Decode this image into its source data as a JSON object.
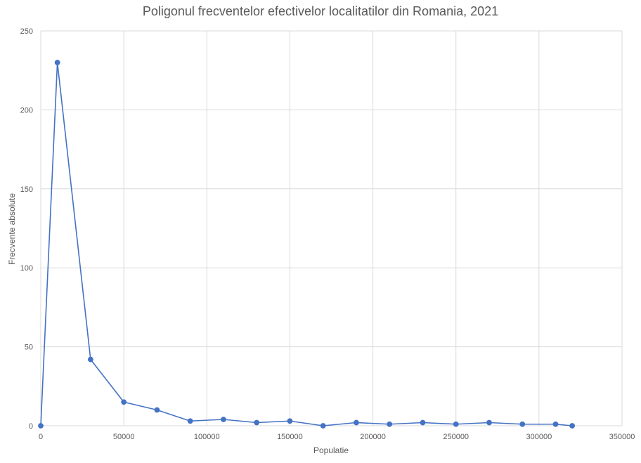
{
  "chart_data": {
    "type": "line",
    "title": "Poligonul frecventelor efectivelor localitatilor din Romania, 2021",
    "xlabel": "Populatie",
    "ylabel": "Frecvente absolute",
    "xlim": [
      0,
      350000
    ],
    "ylim": [
      0,
      250
    ],
    "x_ticks": [
      0,
      50000,
      100000,
      150000,
      200000,
      250000,
      300000,
      350000
    ],
    "y_ticks": [
      0,
      50,
      100,
      150,
      200,
      250
    ],
    "grid": true,
    "legend": "none",
    "series": [
      {
        "color": "#4472C4",
        "points": [
          {
            "x": 0,
            "y": 0
          },
          {
            "x": 10000,
            "y": 230
          },
          {
            "x": 30000,
            "y": 42
          },
          {
            "x": 50000,
            "y": 15
          },
          {
            "x": 70000,
            "y": 10
          },
          {
            "x": 90000,
            "y": 3
          },
          {
            "x": 110000,
            "y": 4
          },
          {
            "x": 130000,
            "y": 2
          },
          {
            "x": 150000,
            "y": 3
          },
          {
            "x": 170000,
            "y": 0
          },
          {
            "x": 190000,
            "y": 2
          },
          {
            "x": 210000,
            "y": 1
          },
          {
            "x": 230000,
            "y": 2
          },
          {
            "x": 250000,
            "y": 1
          },
          {
            "x": 270000,
            "y": 2
          },
          {
            "x": 290000,
            "y": 1
          },
          {
            "x": 310000,
            "y": 1
          },
          {
            "x": 320000,
            "y": 0
          }
        ]
      }
    ]
  }
}
